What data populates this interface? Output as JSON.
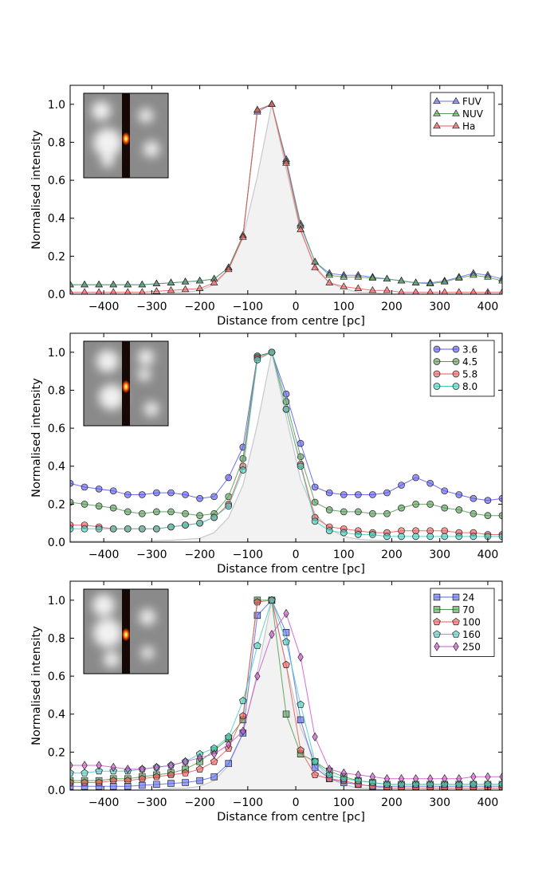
{
  "chart_data": [
    {
      "type": "line",
      "panel": "top",
      "xlabel": "Distance from centre [pc]",
      "ylabel": "Normalised intensity",
      "xlim": [
        -470,
        430
      ],
      "ylim": [
        0,
        1.1
      ],
      "xticks": [
        -400,
        -300,
        -200,
        -100,
        0,
        100,
        200,
        300,
        400
      ],
      "yticks": [
        0.0,
        0.2,
        0.4,
        0.6,
        0.8,
        1.0
      ],
      "legend_position": "top-right",
      "inset": "image cutout with slit",
      "x": [
        -470,
        -440,
        -410,
        -380,
        -350,
        -320,
        -290,
        -260,
        -230,
        -200,
        -170,
        -140,
        -110,
        -80,
        -50,
        -20,
        10,
        40,
        70,
        100,
        130,
        160,
        190,
        220,
        250,
        280,
        310,
        340,
        370,
        400,
        430
      ],
      "psf": [
        0.0,
        0.0,
        0.0,
        0.0,
        0.0,
        0.0,
        0.0,
        0.01,
        0.01,
        0.02,
        0.05,
        0.13,
        0.3,
        0.62,
        1.0,
        0.66,
        0.33,
        0.15,
        0.06,
        0.03,
        0.01,
        0.01,
        0.0,
        0.0,
        0.0,
        0.0,
        0.0,
        0.0,
        0.0,
        0.0,
        0.0
      ],
      "series": [
        {
          "name": "FUV",
          "marker": "triangle",
          "color": "#6b6bf0",
          "values": [
            0.05,
            0.05,
            0.05,
            0.05,
            0.05,
            0.05,
            0.055,
            0.06,
            0.065,
            0.07,
            0.08,
            0.14,
            0.31,
            0.96,
            1.0,
            0.71,
            0.37,
            0.17,
            0.11,
            0.1,
            0.1,
            0.09,
            0.08,
            0.07,
            0.06,
            0.06,
            0.07,
            0.09,
            0.11,
            0.1,
            0.08
          ]
        },
        {
          "name": "NUV",
          "marker": "triangle",
          "color": "#55a055",
          "values": [
            0.05,
            0.05,
            0.05,
            0.05,
            0.05,
            0.05,
            0.055,
            0.06,
            0.065,
            0.07,
            0.08,
            0.14,
            0.31,
            0.97,
            1.0,
            0.7,
            0.36,
            0.17,
            0.1,
            0.09,
            0.09,
            0.085,
            0.08,
            0.07,
            0.06,
            0.055,
            0.065,
            0.085,
            0.1,
            0.09,
            0.07
          ]
        },
        {
          "name": "Ha",
          "marker": "triangle",
          "color": "#ee5555",
          "values": [
            0.01,
            0.01,
            0.01,
            0.01,
            0.01,
            0.01,
            0.015,
            0.02,
            0.025,
            0.03,
            0.06,
            0.13,
            0.3,
            0.97,
            1.0,
            0.69,
            0.34,
            0.14,
            0.06,
            0.04,
            0.03,
            0.02,
            0.02,
            0.01,
            0.01,
            0.01,
            0.01,
            0.01,
            0.01,
            0.01,
            0.01
          ]
        }
      ]
    },
    {
      "type": "line",
      "panel": "middle",
      "xlabel": "Distance from centre [pc]",
      "ylabel": "Normalised intensity",
      "xlim": [
        -470,
        430
      ],
      "ylim": [
        0,
        1.1
      ],
      "xticks": [
        -400,
        -300,
        -200,
        -100,
        0,
        100,
        200,
        300,
        400
      ],
      "yticks": [
        0.0,
        0.2,
        0.4,
        0.6,
        0.8,
        1.0
      ],
      "legend_position": "top-right",
      "inset": "image cutout with slit",
      "x": [
        -470,
        -440,
        -410,
        -380,
        -350,
        -320,
        -290,
        -260,
        -230,
        -200,
        -170,
        -140,
        -110,
        -80,
        -50,
        -20,
        10,
        40,
        70,
        100,
        130,
        160,
        190,
        220,
        250,
        280,
        310,
        340,
        370,
        400,
        430
      ],
      "psf": [
        0.005,
        0.005,
        0.005,
        0.005,
        0.005,
        0.005,
        0.008,
        0.01,
        0.015,
        0.02,
        0.05,
        0.13,
        0.3,
        0.62,
        1.0,
        0.66,
        0.33,
        0.15,
        0.07,
        0.03,
        0.015,
        0.01,
        0.008,
        0.005,
        0.005,
        0.005,
        0.005,
        0.005,
        0.005,
        0.005,
        0.005
      ],
      "series": [
        {
          "name": "3.6",
          "marker": "circle",
          "color": "#5555ee",
          "values": [
            0.31,
            0.29,
            0.28,
            0.27,
            0.25,
            0.25,
            0.26,
            0.26,
            0.25,
            0.23,
            0.24,
            0.34,
            0.5,
            0.98,
            1.0,
            0.78,
            0.52,
            0.29,
            0.26,
            0.25,
            0.25,
            0.25,
            0.26,
            0.3,
            0.34,
            0.31,
            0.27,
            0.25,
            0.23,
            0.22,
            0.23
          ]
        },
        {
          "name": "4.5",
          "marker": "circle",
          "color": "#4f9a4f",
          "values": [
            0.21,
            0.2,
            0.19,
            0.18,
            0.16,
            0.15,
            0.16,
            0.16,
            0.15,
            0.14,
            0.15,
            0.24,
            0.44,
            0.98,
            1.0,
            0.74,
            0.45,
            0.21,
            0.17,
            0.16,
            0.16,
            0.15,
            0.15,
            0.18,
            0.2,
            0.2,
            0.18,
            0.17,
            0.15,
            0.14,
            0.14
          ]
        },
        {
          "name": "5.8",
          "marker": "circle",
          "color": "#ee5555",
          "values": [
            0.09,
            0.09,
            0.08,
            0.07,
            0.07,
            0.07,
            0.07,
            0.08,
            0.09,
            0.1,
            0.13,
            0.2,
            0.4,
            0.97,
            1.0,
            0.7,
            0.41,
            0.13,
            0.08,
            0.07,
            0.06,
            0.05,
            0.05,
            0.06,
            0.06,
            0.06,
            0.06,
            0.05,
            0.05,
            0.04,
            0.04
          ]
        },
        {
          "name": "8.0",
          "marker": "circle",
          "color": "#44ccbb",
          "values": [
            0.07,
            0.07,
            0.07,
            0.07,
            0.07,
            0.07,
            0.07,
            0.08,
            0.09,
            0.1,
            0.13,
            0.19,
            0.38,
            0.96,
            1.0,
            0.7,
            0.4,
            0.11,
            0.06,
            0.05,
            0.04,
            0.04,
            0.03,
            0.03,
            0.03,
            0.03,
            0.03,
            0.03,
            0.03,
            0.03,
            0.03
          ]
        }
      ]
    },
    {
      "type": "line",
      "panel": "bottom",
      "xlabel": "Distance from centre [pc]",
      "ylabel": "Normalised intensity",
      "xlim": [
        -470,
        430
      ],
      "ylim": [
        0,
        1.1
      ],
      "xticks": [
        -400,
        -300,
        -200,
        -100,
        0,
        100,
        200,
        300,
        400
      ],
      "yticks": [
        0.0,
        0.2,
        0.4,
        0.6,
        0.8,
        1.0
      ],
      "legend_position": "top-right",
      "inset": "image cutout with slit",
      "x": [
        -470,
        -440,
        -410,
        -380,
        -350,
        -320,
        -290,
        -260,
        -230,
        -200,
        -170,
        -140,
        -110,
        -80,
        -50,
        -20,
        10,
        40,
        70,
        100,
        130,
        160,
        190,
        220,
        250,
        280,
        310,
        340,
        370,
        400,
        430
      ],
      "psf": [
        0.0,
        0.0,
        0.0,
        0.0,
        0.0,
        0.0,
        0.0,
        0.01,
        0.01,
        0.02,
        0.05,
        0.13,
        0.3,
        0.62,
        1.0,
        0.66,
        0.33,
        0.15,
        0.06,
        0.03,
        0.01,
        0.01,
        0.0,
        0.0,
        0.0,
        0.0,
        0.0,
        0.0,
        0.0,
        0.0,
        0.0
      ],
      "series": [
        {
          "name": "24",
          "marker": "square",
          "color": "#5566ee",
          "values": [
            0.02,
            0.02,
            0.02,
            0.02,
            0.02,
            0.025,
            0.03,
            0.035,
            0.04,
            0.05,
            0.07,
            0.14,
            0.3,
            0.92,
            1.0,
            0.83,
            0.37,
            0.12,
            0.06,
            0.04,
            0.03,
            0.02,
            0.02,
            0.02,
            0.02,
            0.02,
            0.02,
            0.02,
            0.02,
            0.02,
            0.02
          ]
        },
        {
          "name": "70",
          "marker": "square",
          "color": "#4f9a4f",
          "values": [
            0.05,
            0.05,
            0.05,
            0.06,
            0.06,
            0.07,
            0.08,
            0.09,
            0.11,
            0.15,
            0.21,
            0.27,
            0.37,
            1.0,
            1.0,
            0.4,
            0.19,
            0.15,
            0.1,
            0.07,
            0.05,
            0.04,
            0.03,
            0.03,
            0.03,
            0.03,
            0.03,
            0.03,
            0.03,
            0.03,
            0.03
          ]
        },
        {
          "name": "100",
          "marker": "pentagon",
          "color": "#ee5555",
          "values": [
            0.04,
            0.04,
            0.04,
            0.05,
            0.05,
            0.06,
            0.07,
            0.08,
            0.09,
            0.11,
            0.15,
            0.22,
            0.39,
            0.99,
            1.0,
            0.66,
            0.21,
            0.08,
            0.06,
            0.05,
            0.03,
            0.02,
            0.01,
            0.01,
            0.01,
            0.01,
            0.01,
            0.01,
            0.01,
            0.01,
            0.01
          ]
        },
        {
          "name": "160",
          "marker": "pentagon",
          "color": "#44ccbb",
          "values": [
            0.09,
            0.09,
            0.1,
            0.1,
            0.1,
            0.11,
            0.12,
            0.13,
            0.15,
            0.19,
            0.22,
            0.28,
            0.47,
            0.76,
            1.0,
            0.78,
            0.45,
            0.15,
            0.08,
            0.06,
            0.05,
            0.04,
            0.03,
            0.03,
            0.03,
            0.03,
            0.03,
            0.03,
            0.03,
            0.03,
            0.03
          ]
        },
        {
          "name": "250",
          "marker": "diamond",
          "color": "#cc55cc",
          "values": [
            0.13,
            0.13,
            0.13,
            0.12,
            0.11,
            0.11,
            0.12,
            0.13,
            0.15,
            0.17,
            0.19,
            0.24,
            0.31,
            0.6,
            0.82,
            0.93,
            0.7,
            0.28,
            0.11,
            0.09,
            0.08,
            0.07,
            0.06,
            0.06,
            0.06,
            0.06,
            0.06,
            0.06,
            0.07,
            0.07,
            0.07
          ]
        }
      ]
    }
  ]
}
